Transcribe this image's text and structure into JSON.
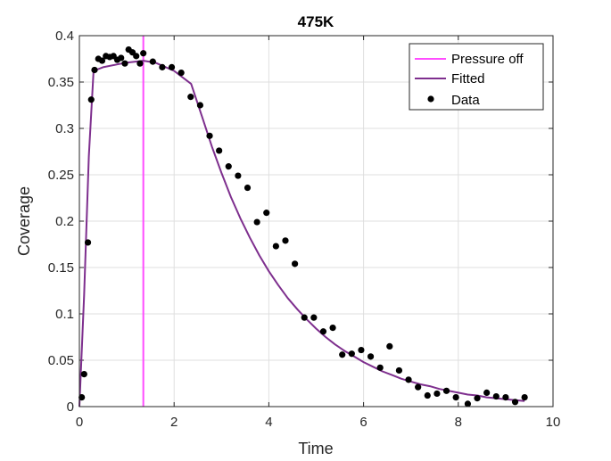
{
  "chart_data": {
    "type": "line",
    "title": "475K",
    "xlabel": "Time",
    "ylabel": "Coverage",
    "xlim": [
      0,
      10
    ],
    "ylim": [
      0,
      0.4
    ],
    "xticks": [
      0,
      2,
      4,
      6,
      8,
      10
    ],
    "xtick_labels": [
      "0",
      "2",
      "4",
      "6",
      "8",
      "10"
    ],
    "yticks": [
      0,
      0.05,
      0.1,
      0.15,
      0.2,
      0.25,
      0.3,
      0.35,
      0.4
    ],
    "ytick_labels": [
      "0",
      "0.05",
      "0.1",
      "0.15",
      "0.2",
      "0.25",
      "0.3",
      "0.35",
      "0.4"
    ],
    "grid": true,
    "legend_position": "top-right",
    "series": [
      {
        "name": "Pressure off",
        "kind": "vline",
        "color": "#ff4dff",
        "x": 1.35
      },
      {
        "name": "Fitted",
        "kind": "line",
        "color": "#7e2f8e",
        "x": [
          0,
          0.1,
          0.2,
          0.3,
          0.5,
          0.8,
          1.0,
          1.35,
          1.6,
          2.0,
          2.36,
          2.6,
          2.8,
          3.0,
          3.2,
          3.4,
          3.6,
          3.8,
          4.0,
          4.2,
          4.4,
          4.6,
          4.8,
          5.0,
          5.2,
          5.4,
          5.6,
          5.8,
          6.0,
          6.2,
          6.4,
          6.6,
          6.8,
          7.0,
          7.2,
          7.4,
          7.6,
          7.8,
          8.0,
          8.2,
          8.4,
          8.6,
          8.8,
          9.0,
          9.2,
          9.4
        ],
        "y": [
          0.0,
          0.12,
          0.27,
          0.362,
          0.366,
          0.369,
          0.371,
          0.373,
          0.371,
          0.362,
          0.348,
          0.311,
          0.28,
          0.252,
          0.226,
          0.203,
          0.182,
          0.163,
          0.146,
          0.131,
          0.117,
          0.105,
          0.094,
          0.084,
          0.075,
          0.067,
          0.06,
          0.054,
          0.048,
          0.043,
          0.038,
          0.034,
          0.03,
          0.027,
          0.024,
          0.022,
          0.019,
          0.017,
          0.015,
          0.013,
          0.012,
          0.01,
          0.009,
          0.008,
          0.007,
          0.006
        ]
      },
      {
        "name": "Data",
        "kind": "scatter",
        "color": "#000000",
        "x": [
          0.05,
          0.1,
          0.18,
          0.25,
          0.32,
          0.4,
          0.48,
          0.56,
          0.64,
          0.72,
          0.8,
          0.88,
          0.96,
          1.04,
          1.12,
          1.2,
          1.28,
          1.35,
          1.55,
          1.75,
          1.95,
          2.15,
          2.35,
          2.55,
          2.75,
          2.95,
          3.15,
          3.35,
          3.55,
          3.75,
          3.95,
          4.15,
          4.35,
          4.55,
          4.75,
          4.95,
          5.15,
          5.35,
          5.55,
          5.75,
          5.95,
          6.15,
          6.35,
          6.55,
          6.75,
          6.95,
          7.15,
          7.35,
          7.55,
          7.75,
          7.95,
          8.2,
          8.4,
          8.6,
          8.8,
          9.0,
          9.2,
          9.4
        ],
        "y": [
          0.01,
          0.035,
          0.177,
          0.331,
          0.363,
          0.375,
          0.373,
          0.378,
          0.377,
          0.378,
          0.374,
          0.376,
          0.37,
          0.385,
          0.382,
          0.378,
          0.37,
          0.381,
          0.372,
          0.366,
          0.366,
          0.36,
          0.334,
          0.325,
          0.292,
          0.276,
          0.259,
          0.249,
          0.236,
          0.199,
          0.209,
          0.173,
          0.179,
          0.154,
          0.096,
          0.096,
          0.081,
          0.085,
          0.056,
          0.057,
          0.061,
          0.054,
          0.042,
          0.065,
          0.039,
          0.029,
          0.021,
          0.012,
          0.014,
          0.017,
          0.01,
          0.003,
          0.009,
          0.015,
          0.011,
          0.01,
          0.005,
          0.01
        ]
      }
    ]
  }
}
